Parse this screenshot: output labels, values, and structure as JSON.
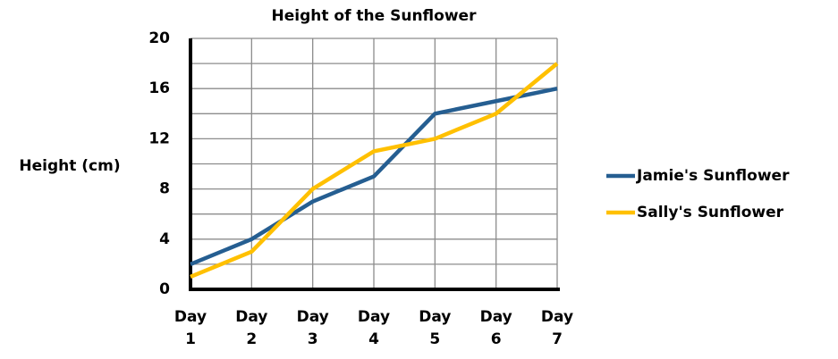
{
  "chart_data": {
    "type": "line",
    "title": "Height of the Sunflower",
    "y_label": "Height (cm)",
    "categories": [
      "Day 1",
      "Day 2",
      "Day 3",
      "Day 4",
      "Day 5",
      "Day 6",
      "Day 7"
    ],
    "series": [
      {
        "name": "Jamie's Sunflower",
        "color": "#255e91",
        "values": [
          2,
          4,
          7,
          9,
          14,
          15,
          16
        ]
      },
      {
        "name": "Sally's Sunflower",
        "color": "#ffc000",
        "values": [
          1,
          3,
          8,
          11,
          12,
          14,
          18
        ]
      }
    ],
    "ylim": [
      0,
      20
    ],
    "yticks": [
      0,
      4,
      8,
      12,
      16,
      20
    ],
    "yminorticks": [
      2,
      6,
      10,
      14,
      18
    ],
    "grid": true,
    "legend": "right"
  }
}
